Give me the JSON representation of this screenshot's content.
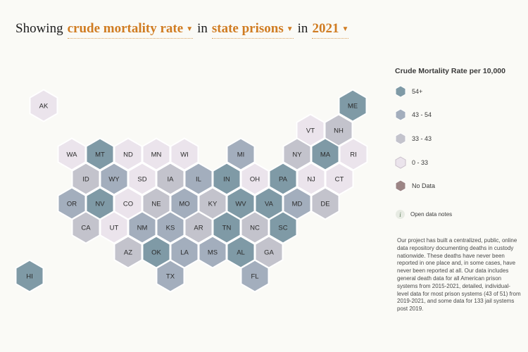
{
  "heading": {
    "prefix": "Showing",
    "metric": "crude mortality rate",
    "connector1": "in",
    "facility": "state prisons",
    "connector2": "in",
    "year": "2021"
  },
  "legend": {
    "title": "Crude Mortality Rate per 10,000",
    "items": [
      {
        "label": "54+",
        "color": "#7f9aa6"
      },
      {
        "label": "43 - 54",
        "color": "#a3aebd"
      },
      {
        "label": "33 - 43",
        "color": "#c3c3cc"
      },
      {
        "label": "0 - 33",
        "color": "#ebe4ec"
      },
      {
        "label": "No Data",
        "color": "#9c8585"
      }
    ]
  },
  "notes_label": "Open data notes",
  "description": "Our project has built a centralized, public, online data repository documenting deaths in custody nationwide. These deaths have never been reported in one place and, in some cases, have never been reported at all. Our data includes general death data for all American prison systems from 2015-2021, detailed, individual-level data for most prison systems (43 of 51) from 2019-2021, and some data for 133 jail systems post 2019.",
  "states": [
    {
      "abbr": "AK",
      "cat": 3
    },
    {
      "abbr": "ME",
      "cat": 0
    },
    {
      "abbr": "VT",
      "cat": 3
    },
    {
      "abbr": "NH",
      "cat": 2
    },
    {
      "abbr": "WA",
      "cat": 3
    },
    {
      "abbr": "MT",
      "cat": 0
    },
    {
      "abbr": "ND",
      "cat": 3
    },
    {
      "abbr": "MN",
      "cat": 3
    },
    {
      "abbr": "WI",
      "cat": 3
    },
    {
      "abbr": "MI",
      "cat": 1
    },
    {
      "abbr": "NY",
      "cat": 2
    },
    {
      "abbr": "MA",
      "cat": 0
    },
    {
      "abbr": "RI",
      "cat": 3
    },
    {
      "abbr": "ID",
      "cat": 2
    },
    {
      "abbr": "WY",
      "cat": 1
    },
    {
      "abbr": "SD",
      "cat": 3
    },
    {
      "abbr": "IA",
      "cat": 2
    },
    {
      "abbr": "IL",
      "cat": 1
    },
    {
      "abbr": "IN",
      "cat": 0
    },
    {
      "abbr": "OH",
      "cat": 3
    },
    {
      "abbr": "PA",
      "cat": 0
    },
    {
      "abbr": "NJ",
      "cat": 3
    },
    {
      "abbr": "CT",
      "cat": 3
    },
    {
      "abbr": "OR",
      "cat": 1
    },
    {
      "abbr": "NV",
      "cat": 0
    },
    {
      "abbr": "CO",
      "cat": 3
    },
    {
      "abbr": "NE",
      "cat": 2
    },
    {
      "abbr": "MO",
      "cat": 1
    },
    {
      "abbr": "KY",
      "cat": 2
    },
    {
      "abbr": "WV",
      "cat": 0
    },
    {
      "abbr": "VA",
      "cat": 0
    },
    {
      "abbr": "MD",
      "cat": 1
    },
    {
      "abbr": "DE",
      "cat": 2
    },
    {
      "abbr": "CA",
      "cat": 2
    },
    {
      "abbr": "UT",
      "cat": 3
    },
    {
      "abbr": "NM",
      "cat": 1
    },
    {
      "abbr": "KS",
      "cat": 1
    },
    {
      "abbr": "AR",
      "cat": 2
    },
    {
      "abbr": "TN",
      "cat": 0
    },
    {
      "abbr": "NC",
      "cat": 2
    },
    {
      "abbr": "SC",
      "cat": 0
    },
    {
      "abbr": "AZ",
      "cat": 2
    },
    {
      "abbr": "OK",
      "cat": 0
    },
    {
      "abbr": "LA",
      "cat": 1
    },
    {
      "abbr": "MS",
      "cat": 1
    },
    {
      "abbr": "AL",
      "cat": 0
    },
    {
      "abbr": "GA",
      "cat": 2
    },
    {
      "abbr": "HI",
      "cat": 0
    },
    {
      "abbr": "TX",
      "cat": 1
    },
    {
      "abbr": "FL",
      "cat": 1
    }
  ]
}
